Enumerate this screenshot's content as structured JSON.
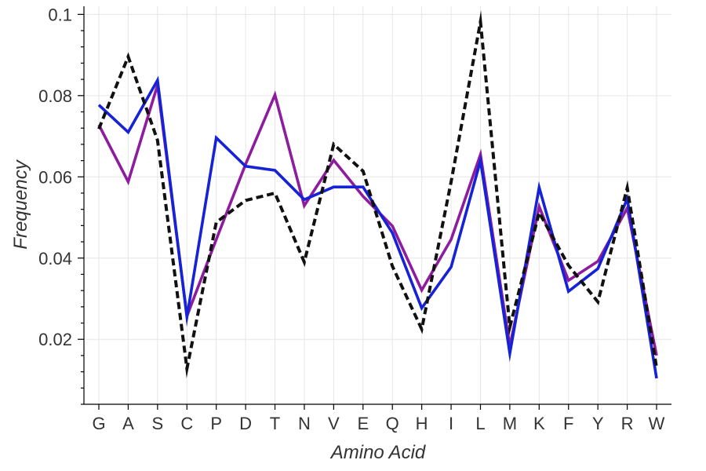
{
  "chart_data": {
    "type": "line",
    "xlabel": "Amino Acid",
    "ylabel": "Frequency",
    "ylim": [
      0.004,
      0.102
    ],
    "grid": true,
    "categories": [
      "G",
      "A",
      "S",
      "C",
      "P",
      "D",
      "T",
      "N",
      "V",
      "E",
      "Q",
      "H",
      "I",
      "L",
      "M",
      "K",
      "F",
      "Y",
      "R",
      "W"
    ],
    "y_ticks": [
      {
        "value": 0.02,
        "label": "0.02"
      },
      {
        "value": 0.04,
        "label": "0.04"
      },
      {
        "value": 0.06,
        "label": "0.06"
      },
      {
        "value": 0.08,
        "label": "0.08"
      },
      {
        "value": 0.1,
        "label": "0.1"
      }
    ],
    "y_minor_step": 0.004,
    "series": [
      {
        "color": "#8e1c9e",
        "dash": "solid",
        "values": [
          0.0728,
          0.0588,
          0.0826,
          0.0257,
          0.0446,
          0.0631,
          0.0802,
          0.0529,
          0.0641,
          0.0552,
          0.0479,
          0.0321,
          0.0446,
          0.0655,
          0.0183,
          0.0527,
          0.0345,
          0.0392,
          0.0523,
          0.016
        ]
      },
      {
        "color": "#1522d6",
        "dash": "solid",
        "values": [
          0.0777,
          0.071,
          0.0838,
          0.0255,
          0.0696,
          0.0626,
          0.0616,
          0.0544,
          0.0575,
          0.0575,
          0.0462,
          0.0277,
          0.0378,
          0.064,
          0.0165,
          0.0574,
          0.0318,
          0.0374,
          0.0546,
          0.0104
        ]
      },
      {
        "color": "#111111",
        "dash": "dashed",
        "values": [
          0.0718,
          0.0896,
          0.069,
          0.0128,
          0.0488,
          0.0542,
          0.056,
          0.039,
          0.068,
          0.0614,
          0.038,
          0.0225,
          0.0588,
          0.0982,
          0.023,
          0.0512,
          0.0382,
          0.0292,
          0.0573,
          0.013
        ]
      }
    ]
  }
}
